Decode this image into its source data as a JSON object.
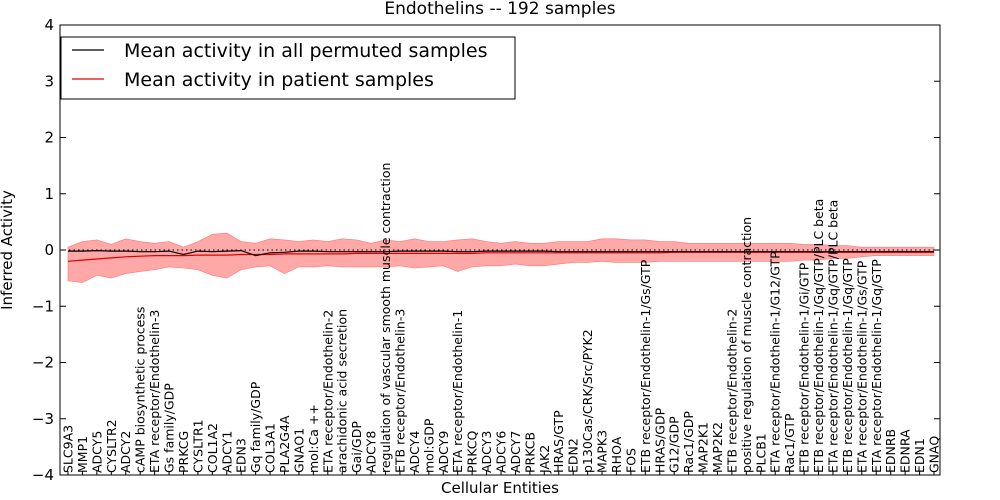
{
  "chart_data": {
    "type": "line",
    "title": "Endothelins -- 192 samples",
    "xlabel": "Cellular Entities",
    "ylabel": "Inferred Activity",
    "ylim": [
      -4,
      4
    ],
    "yticks": [
      -4,
      -3,
      -2,
      -1,
      0,
      1,
      2,
      3,
      4
    ],
    "ytick_labels": [
      "−4",
      "−3",
      "−2",
      "−1",
      "0",
      "1",
      "2",
      "3",
      "4"
    ],
    "legend_position": "top-left",
    "reference_line": 0,
    "categories": [
      "SLC9A3",
      "MMP1",
      "ADCY5",
      "CYSLTR2",
      "ADCY2",
      "cAMP biosynthetic process",
      "ETA receptor/Endothelin-3",
      "Gs family/GDP",
      "PRKCG",
      "CYSLTR1",
      "COL1A2",
      "ADCY1",
      "EDN3",
      "Gq family/GDP",
      "COL3A1",
      "PLA2G4A",
      "GNAO1",
      "mol:Ca ++",
      "ETA receptor/Endothelin-2",
      "arachidonic acid secretion",
      "Gai/GDP",
      "ADCY8",
      "regulation of vascular smooth muscle contraction",
      "ETB receptor/Endothelin-3",
      "ADCY4",
      "mol:GDP",
      "ADCY9",
      "ETA receptor/Endothelin-1",
      "PRKCQ",
      "ADCY3",
      "ADCY6",
      "ADCY7",
      "PRKCB",
      "JAK2",
      "HRAS/GTP",
      "EDN2",
      "p130Cas/CRK/Src/PYK2",
      "MAPK3",
      "RHOA",
      "FOS",
      "ETB receptor/Endothelin-1/Gs/GTP",
      "HRAS/GDP",
      "G12/GDP",
      "Rac1/GDP",
      "MAP2K1",
      "MAP2K2",
      "ETB receptor/Endothelin-2",
      "positive regulation of muscle contraction",
      "PLCB1",
      "ETA receptor/Endothelin-1/G12/GTP",
      "Rac1/GTP",
      "ETB receptor/Endothelin-1/Gi/GTP",
      "ETB receptor/Endothelin-1/Gq/GTP/PLC beta",
      "ETA receptor/Endothelin-1/Gq/GTP/PLC beta",
      "ETB receptor/Endothelin-1/Gq/GTP",
      "ETA receptor/Endothelin-1/Gs/GTP",
      "ETA receptor/Endothelin-1/Gq/GTP",
      "EDNRB",
      "EDNRA",
      "EDN1",
      "GNAQ"
    ],
    "series": [
      {
        "name": "Mean activity in all permuted samples",
        "color": "#000000",
        "values": [
          -0.02,
          -0.02,
          -0.01,
          -0.02,
          -0.02,
          -0.03,
          -0.03,
          -0.02,
          -0.08,
          -0.02,
          -0.03,
          -0.02,
          -0.01,
          -0.1,
          -0.05,
          -0.04,
          -0.02,
          -0.02,
          -0.03,
          -0.03,
          -0.03,
          -0.03,
          -0.03,
          -0.02,
          -0.02,
          -0.02,
          -0.02,
          -0.03,
          -0.03,
          -0.02,
          -0.02,
          -0.02,
          -0.02,
          -0.02,
          -0.03,
          -0.03,
          -0.03,
          -0.03,
          -0.03,
          -0.03,
          -0.03,
          -0.03,
          -0.03,
          -0.03,
          -0.03,
          -0.03,
          -0.03,
          -0.03,
          -0.03,
          -0.03,
          -0.03,
          -0.03,
          -0.03,
          -0.03,
          -0.03,
          -0.03,
          -0.03,
          -0.03,
          -0.03,
          -0.03,
          -0.03
        ]
      },
      {
        "name": "Mean activity in patient samples",
        "color": "#e00000",
        "band_color": "#ff9999",
        "values": [
          -0.2,
          -0.18,
          -0.16,
          -0.14,
          -0.12,
          -0.11,
          -0.1,
          -0.1,
          -0.1,
          -0.09,
          -0.09,
          -0.09,
          -0.08,
          -0.08,
          -0.08,
          -0.07,
          -0.07,
          -0.07,
          -0.07,
          -0.07,
          -0.06,
          -0.06,
          -0.06,
          -0.06,
          -0.06,
          -0.06,
          -0.06,
          -0.06,
          -0.06,
          -0.05,
          -0.05,
          -0.05,
          -0.05,
          -0.05,
          -0.05,
          -0.05,
          -0.05,
          -0.05,
          -0.05,
          -0.05,
          -0.05,
          -0.05,
          -0.04,
          -0.04,
          -0.04,
          -0.04,
          -0.04,
          -0.04,
          -0.04,
          -0.04,
          -0.04,
          -0.04,
          -0.04,
          -0.04,
          -0.04,
          -0.04,
          -0.04,
          -0.04,
          -0.04,
          -0.04,
          -0.04
        ],
        "upper": [
          0.05,
          0.15,
          0.18,
          0.1,
          0.2,
          0.15,
          0.12,
          0.15,
          0.05,
          0.15,
          0.28,
          0.3,
          0.15,
          0.12,
          0.2,
          0.18,
          0.15,
          0.18,
          0.15,
          0.2,
          0.18,
          0.12,
          0.18,
          0.15,
          0.2,
          0.15,
          0.15,
          0.18,
          0.2,
          0.15,
          0.12,
          0.15,
          0.12,
          0.12,
          0.15,
          0.15,
          0.15,
          0.2,
          0.2,
          0.18,
          0.18,
          0.15,
          0.15,
          0.12,
          0.12,
          0.12,
          0.12,
          0.12,
          0.12,
          0.12,
          0.12,
          0.1,
          0.1,
          0.08,
          0.08,
          0.05,
          0.05,
          0.05,
          0.05,
          0.05,
          0.05
        ],
        "lower": [
          -0.55,
          -0.58,
          -0.45,
          -0.5,
          -0.42,
          -0.38,
          -0.35,
          -0.3,
          -0.32,
          -0.35,
          -0.45,
          -0.5,
          -0.35,
          -0.3,
          -0.28,
          -0.42,
          -0.3,
          -0.3,
          -0.28,
          -0.3,
          -0.3,
          -0.3,
          -0.3,
          -0.28,
          -0.32,
          -0.3,
          -0.28,
          -0.38,
          -0.3,
          -0.28,
          -0.28,
          -0.25,
          -0.28,
          -0.28,
          -0.25,
          -0.22,
          -0.22,
          -0.2,
          -0.22,
          -0.22,
          -0.22,
          -0.2,
          -0.2,
          -0.2,
          -0.2,
          -0.2,
          -0.2,
          -0.2,
          -0.2,
          -0.2,
          -0.2,
          -0.18,
          -0.18,
          -0.15,
          -0.15,
          -0.12,
          -0.1,
          -0.1,
          -0.1,
          -0.1,
          -0.1
        ]
      }
    ]
  }
}
